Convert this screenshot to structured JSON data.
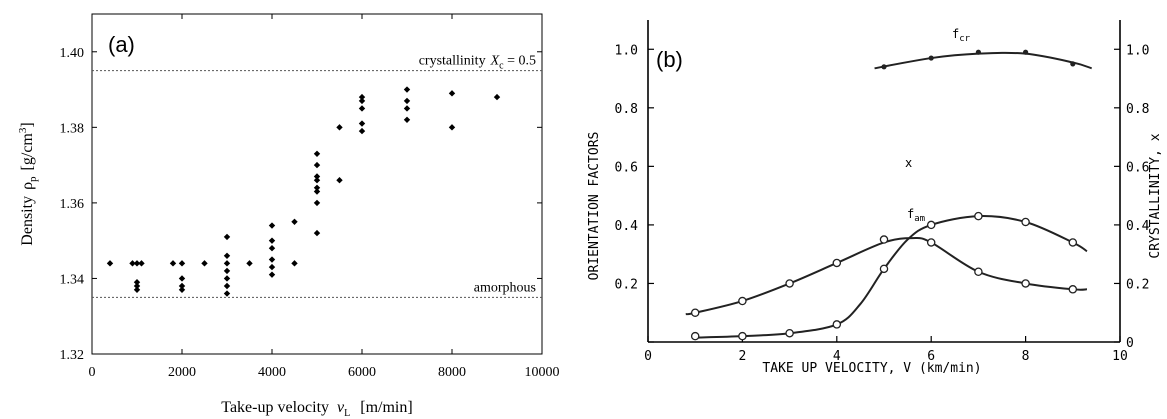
{
  "chart_data": [
    {
      "type": "scatter",
      "panel_label": "(a)",
      "xlabel": "Take-up velocity",
      "xlabel_symbol": "v",
      "xlabel_sub": "L",
      "xlabel_unit": "[m/min]",
      "ylabel": "Density",
      "ylabel_symbol": "ρ",
      "ylabel_sub": "p",
      "ylabel_unit": "[g/cm",
      "ylabel_unit_sup": "3",
      "ylabel_unit_close": "]",
      "xlim": [
        0,
        10000
      ],
      "ylim": [
        1.32,
        1.41
      ],
      "x_ticks": [
        0,
        2000,
        4000,
        6000,
        8000,
        10000
      ],
      "y_ticks": [
        1.32,
        1.34,
        1.36,
        1.38,
        1.4
      ],
      "y_tick_labels": [
        "1.32",
        "1.34",
        "1.36",
        "1.38",
        "1.40"
      ],
      "reference_lines": [
        {
          "y": 1.395,
          "label": "crystallinity",
          "label_symbol": "X",
          "label_sub": "c",
          "label_value": " = 0.5"
        },
        {
          "y": 1.335,
          "label": "amorphous"
        }
      ],
      "points": [
        [
          400,
          1.344
        ],
        [
          900,
          1.344
        ],
        [
          1000,
          1.344
        ],
        [
          1000,
          1.339
        ],
        [
          1000,
          1.338
        ],
        [
          1000,
          1.337
        ],
        [
          1100,
          1.344
        ],
        [
          1800,
          1.344
        ],
        [
          2000,
          1.344
        ],
        [
          2000,
          1.34
        ],
        [
          2000,
          1.338
        ],
        [
          2000,
          1.337
        ],
        [
          2500,
          1.344
        ],
        [
          3000,
          1.351
        ],
        [
          3000,
          1.346
        ],
        [
          3000,
          1.344
        ],
        [
          3000,
          1.342
        ],
        [
          3000,
          1.34
        ],
        [
          3000,
          1.338
        ],
        [
          3000,
          1.336
        ],
        [
          3500,
          1.344
        ],
        [
          4000,
          1.354
        ],
        [
          4000,
          1.35
        ],
        [
          4000,
          1.348
        ],
        [
          4000,
          1.345
        ],
        [
          4000,
          1.343
        ],
        [
          4000,
          1.341
        ],
        [
          4500,
          1.355
        ],
        [
          4500,
          1.344
        ],
        [
          5000,
          1.373
        ],
        [
          5000,
          1.37
        ],
        [
          5000,
          1.367
        ],
        [
          5000,
          1.366
        ],
        [
          5000,
          1.364
        ],
        [
          5000,
          1.363
        ],
        [
          5000,
          1.36
        ],
        [
          5000,
          1.352
        ],
        [
          5500,
          1.38
        ],
        [
          5500,
          1.366
        ],
        [
          6000,
          1.388
        ],
        [
          6000,
          1.387
        ],
        [
          6000,
          1.385
        ],
        [
          6000,
          1.381
        ],
        [
          6000,
          1.379
        ],
        [
          7000,
          1.39
        ],
        [
          7000,
          1.387
        ],
        [
          7000,
          1.385
        ],
        [
          7000,
          1.382
        ],
        [
          8000,
          1.389
        ],
        [
          8000,
          1.38
        ],
        [
          9000,
          1.388
        ]
      ]
    },
    {
      "type": "line",
      "panel_label": "(b)",
      "xlabel": "TAKE UP VELOCITY,  V  (km/min)",
      "ylabel": "ORIENTATION  FACTORS",
      "y2label": "CRYSTALLINITY,  x",
      "xlim": [
        0,
        10
      ],
      "ylim": [
        0,
        1.1
      ],
      "y2lim": [
        0,
        1.1
      ],
      "x_ticks": [
        0,
        2,
        4,
        6,
        8,
        10
      ],
      "y_ticks": [
        0,
        0.2,
        0.4,
        0.6,
        0.8,
        1.0
      ],
      "y_tick_labels": [
        "0",
        "0.2",
        "0.4",
        "0.6",
        "0.8",
        "1.0"
      ],
      "y2_ticks": [
        0,
        0.2,
        0.4,
        0.6,
        0.8,
        1.0
      ],
      "y2_tick_labels": [
        "0",
        "0.2",
        "0.4",
        "0.6",
        "0.8",
        "1.0"
      ],
      "series": [
        {
          "name": "f_cr",
          "label_main": "f",
          "label_sub": "cr",
          "marker": "dot",
          "x": [
            5,
            6,
            7,
            8,
            9
          ],
          "y": [
            0.94,
            0.97,
            0.99,
            0.99,
            0.95
          ],
          "curve_x": [
            4.8,
            6,
            7,
            8,
            9,
            9.4
          ],
          "curve_y": [
            0.935,
            0.97,
            0.985,
            0.985,
            0.955,
            0.935
          ]
        },
        {
          "name": "x",
          "label_main": "x",
          "label_sub": "",
          "marker": "circle",
          "x": [
            1,
            2,
            3,
            4,
            5,
            6,
            7,
            8,
            9
          ],
          "y": [
            0.02,
            0.02,
            0.03,
            0.06,
            0.25,
            0.4,
            0.43,
            0.41,
            0.34
          ],
          "curve_x": [
            1,
            2,
            3,
            4,
            4.5,
            5,
            5.5,
            6,
            7,
            8,
            9,
            9.3
          ],
          "curve_y": [
            0.015,
            0.02,
            0.03,
            0.06,
            0.13,
            0.25,
            0.35,
            0.4,
            0.43,
            0.41,
            0.34,
            0.31
          ]
        },
        {
          "name": "f_am",
          "label_main": "f",
          "label_sub": "am",
          "marker": "circle",
          "x": [
            1,
            2,
            3,
            4,
            5,
            6,
            7,
            8,
            9
          ],
          "y": [
            0.1,
            0.14,
            0.2,
            0.27,
            0.35,
            0.34,
            0.24,
            0.2,
            0.18
          ],
          "curve_x": [
            0.8,
            1,
            2,
            3,
            4,
            5,
            5.6,
            6,
            7,
            8,
            9,
            9.3
          ],
          "curve_y": [
            0.095,
            0.1,
            0.14,
            0.2,
            0.27,
            0.34,
            0.355,
            0.34,
            0.24,
            0.2,
            0.18,
            0.18
          ]
        }
      ]
    }
  ]
}
